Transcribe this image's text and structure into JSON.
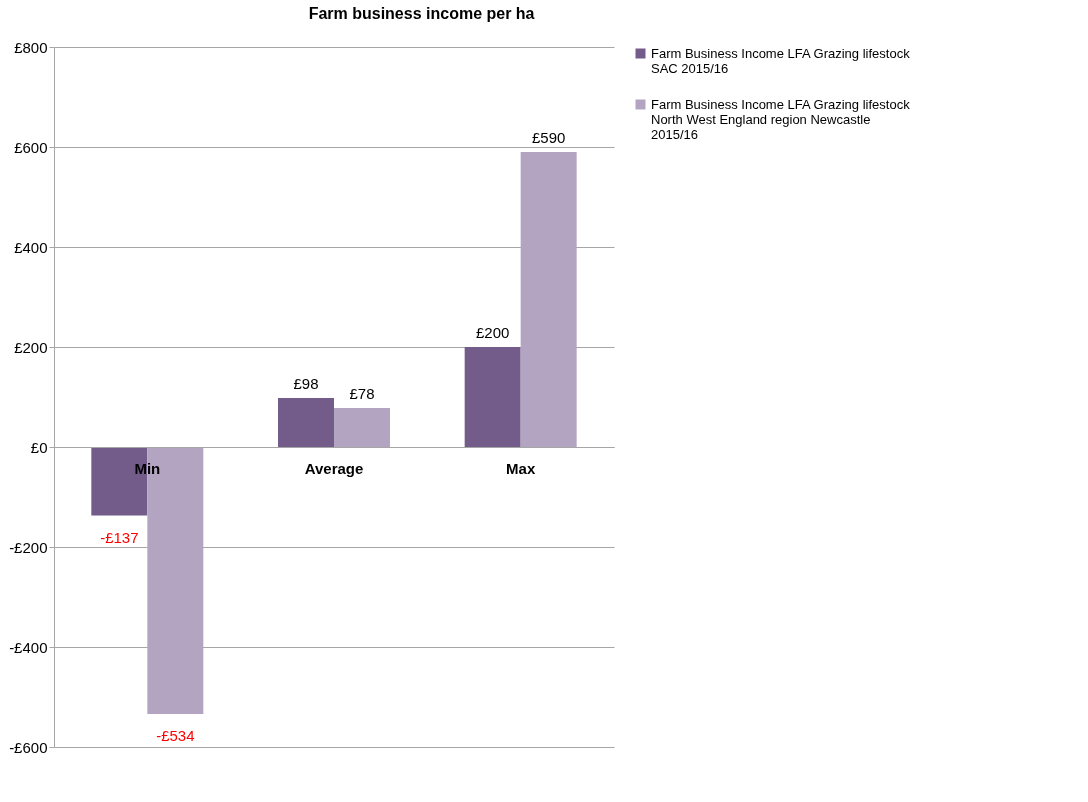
{
  "chart_data": {
    "type": "bar",
    "title": "Farm business income per ha",
    "categories": [
      "Min",
      "Average",
      "Max"
    ],
    "series": [
      {
        "name": "Farm Business Income LFA Grazing lifestock SAC 2015/16",
        "color": "#735b8a",
        "values": [
          -137,
          98,
          200
        ],
        "value_labels": [
          "-£137",
          "£98",
          "£200"
        ]
      },
      {
        "name": "Farm Business Income LFA Grazing lifestock North West England region Newcastle 2015/16",
        "color": "#b3a5c2",
        "values": [
          -534,
          78,
          590
        ],
        "value_labels": [
          "-£534",
          "£78",
          "£590"
        ]
      }
    ],
    "ylim": [
      -600,
      800
    ],
    "yticks": [
      {
        "value": -600,
        "label": "-£600"
      },
      {
        "value": -400,
        "label": "-£400"
      },
      {
        "value": -200,
        "label": "-£200"
      },
      {
        "value": 0,
        "label": "£0"
      },
      {
        "value": 200,
        "label": "£200"
      },
      {
        "value": 400,
        "label": "£400"
      },
      {
        "value": 600,
        "label": "£600"
      },
      {
        "value": 800,
        "label": "£800"
      }
    ],
    "grid": "y",
    "legend": "right"
  }
}
